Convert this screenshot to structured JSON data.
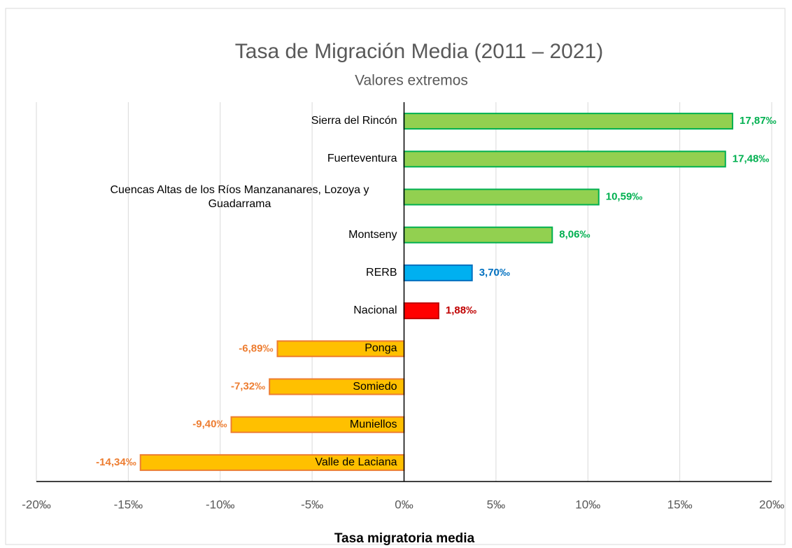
{
  "chart_data": {
    "type": "barh",
    "title": "Tasa de Migración Media (2011 – 2021)",
    "subtitle": "Valores extremos",
    "x_label": "Tasa migratoria media",
    "categories": [
      "Sierra del Rincón",
      "Fuerteventura",
      "Cuencas Altas de los Ríos Manzananares, Lozoya y Guadarrama",
      "Montseny",
      "RERB",
      "Nacional",
      "Ponga",
      "Somiedo",
      "Muniellos",
      "Valle de Laciana"
    ],
    "values": [
      17.87,
      17.48,
      10.59,
      8.06,
      3.7,
      1.88,
      -6.89,
      -7.32,
      -9.4,
      -14.34
    ],
    "value_labels": [
      "17,87‰",
      "17,48‰",
      "10,59‰",
      "8,06‰",
      "3,70‰",
      "1,88‰",
      "-6,89‰",
      "-7,32‰",
      "-9,40‰",
      "-14,34‰"
    ],
    "colors": [
      "#92d050",
      "#92d050",
      "#92d050",
      "#92d050",
      "#00b0f0",
      "#ff0000",
      "#ffc000",
      "#ffc000",
      "#ffc000",
      "#ffc000"
    ],
    "border_colors": [
      "#00b050",
      "#00b050",
      "#00b050",
      "#00b050",
      "#0070c0",
      "#c00000",
      "#ed7d31",
      "#ed7d31",
      "#ed7d31",
      "#ed7d31"
    ],
    "label_colors": [
      "#00b050",
      "#00b050",
      "#00b050",
      "#00b050",
      "#0070c0",
      "#c00000",
      "#ed7d31",
      "#ed7d31",
      "#ed7d31",
      "#ed7d31"
    ],
    "xlim": [
      -20,
      20
    ],
    "xticks": [
      {
        "value": -20,
        "label": "-20‰"
      },
      {
        "value": -15,
        "label": "-15‰"
      },
      {
        "value": -10,
        "label": "-10‰"
      },
      {
        "value": -5,
        "label": "-5‰"
      },
      {
        "value": 0,
        "label": "0‰"
      },
      {
        "value": 5,
        "label": "5‰"
      },
      {
        "value": 10,
        "label": "10‰"
      },
      {
        "value": 15,
        "label": "15‰"
      },
      {
        "value": 20,
        "label": "20‰"
      }
    ],
    "grid": true
  }
}
